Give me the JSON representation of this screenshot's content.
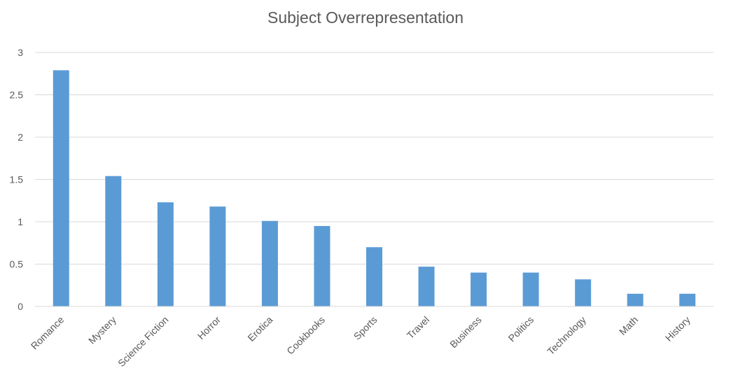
{
  "chart_data": {
    "type": "bar",
    "title": "Subject Overrepresentation",
    "xlabel": "",
    "ylabel": "",
    "categories": [
      "Romance",
      "Mystery",
      "Science Fiction",
      "Horror",
      "Erotica",
      "Cookbooks",
      "Sports",
      "Travel",
      "Business",
      "Politics",
      "Technology",
      "Math",
      "History"
    ],
    "values": [
      2.79,
      1.54,
      1.23,
      1.18,
      1.01,
      0.95,
      0.7,
      0.47,
      0.4,
      0.4,
      0.32,
      0.15,
      0.15
    ],
    "ylim": [
      0,
      3
    ],
    "yticks": [
      "0",
      "0.5",
      "1",
      "1.5",
      "2",
      "2.5",
      "3"
    ],
    "grid": true,
    "legend": "none",
    "colors": {
      "bar": "#5B9BD5",
      "grid": "#D9D9D9",
      "text": "#595959"
    }
  }
}
